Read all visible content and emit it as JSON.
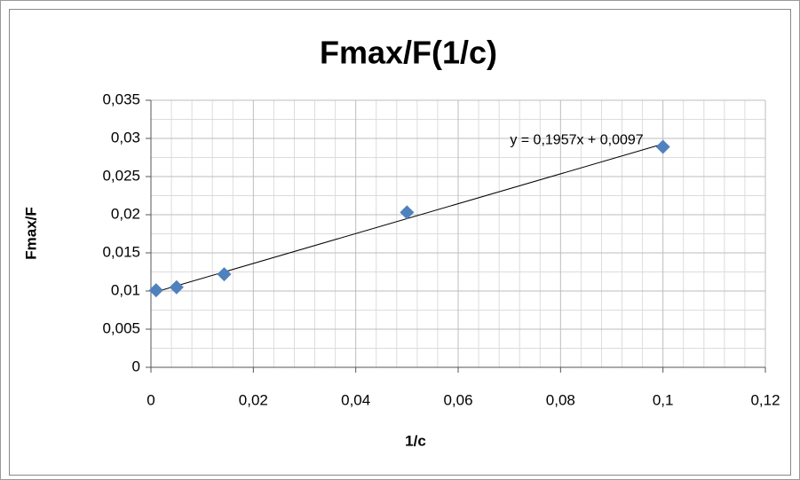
{
  "chart_data": {
    "type": "scatter",
    "title": "Fmax/F(1/c)",
    "x_label": "1/c",
    "y_label": "Fmax/F",
    "series": [
      {
        "name": "Fmax/F",
        "color": "#4f81bd",
        "x": [
          0.001,
          0.005,
          0.0143,
          0.05,
          0.1
        ],
        "values": [
          0.0101,
          0.0105,
          0.0122,
          0.0203,
          0.0289
        ]
      }
    ],
    "trendline": {
      "slope": 0.1957,
      "intercept": 0.0097,
      "label": "y = 0,1957x + 0,0097"
    },
    "xlim": [
      0,
      0.12
    ],
    "xticks": [
      0,
      {
        "value": 0.02,
        "label": "0,02"
      },
      {
        "value": 0.04,
        "label": "0,04"
      },
      {
        "value": 0.06,
        "label": "0,06"
      },
      {
        "value": 0.08,
        "label": "0,08"
      },
      {
        "value": 0.1,
        "label": "0,1"
      },
      {
        "value": 0.12,
        "label": "0,12"
      }
    ],
    "ylim": [
      0,
      0.035
    ],
    "yticks": [
      0,
      {
        "value": 0.005,
        "label": "0,005"
      },
      {
        "value": 0.01,
        "label": "0,01"
      },
      {
        "value": 0.015,
        "label": "0,015"
      },
      {
        "value": 0.02,
        "label": "0,02"
      },
      {
        "value": 0.025,
        "label": "0,025"
      },
      {
        "value": 0.03,
        "label": "0,03"
      },
      {
        "value": 0.035,
        "label": "0,035"
      }
    ],
    "grid": true
  }
}
